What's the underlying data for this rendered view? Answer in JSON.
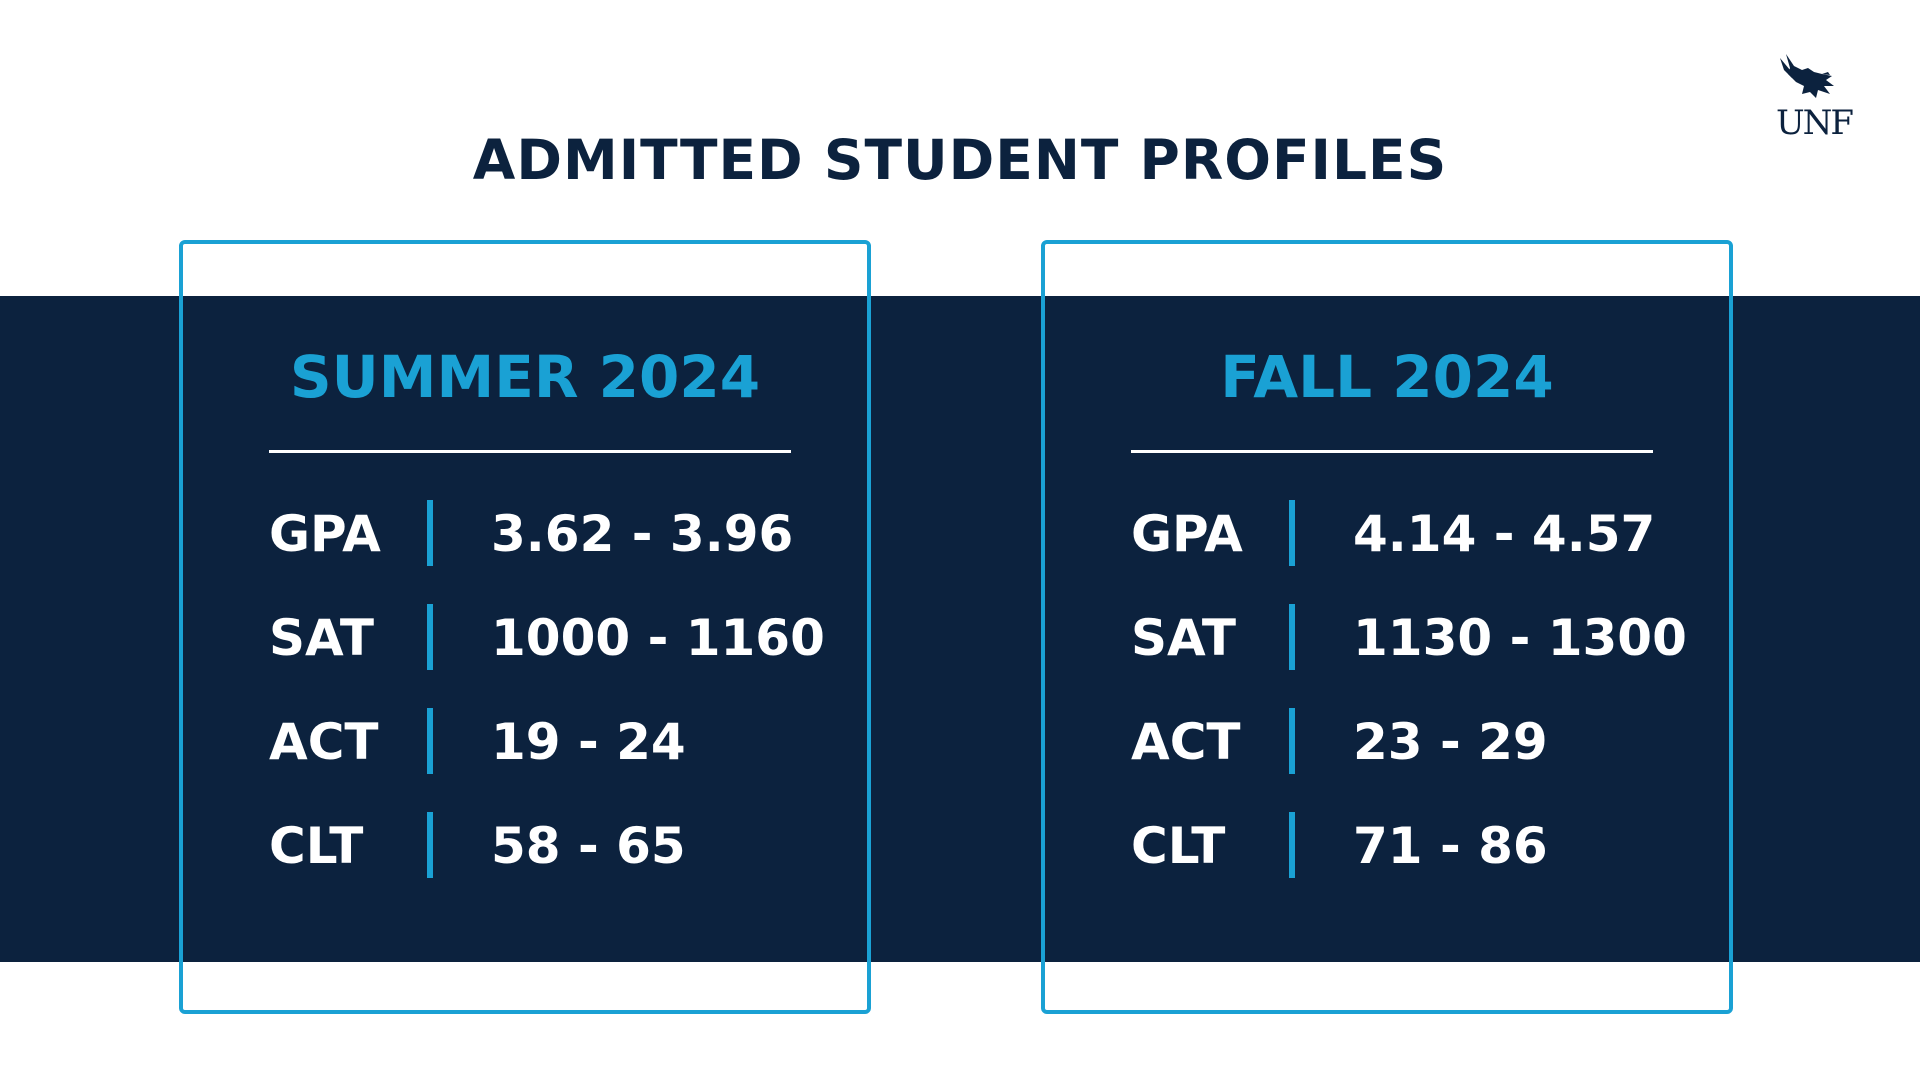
{
  "header": {
    "title": "ADMITTED STUDENT PROFILES",
    "logo_text": "UNF",
    "logo_icon": "osprey-icon"
  },
  "colors": {
    "navy": "#0c223e",
    "accent_blue": "#1aa1d4",
    "white": "#ffffff"
  },
  "cards": [
    {
      "title": "SUMMER 2024",
      "rows": [
        {
          "label": "GPA",
          "value": "3.62 - 3.96"
        },
        {
          "label": "SAT",
          "value": "1000 - 1160"
        },
        {
          "label": "ACT",
          "value": "19 - 24"
        },
        {
          "label": "CLT",
          "value": "58 - 65"
        }
      ]
    },
    {
      "title": "FALL 2024",
      "rows": [
        {
          "label": "GPA",
          "value": "4.14 - 4.57"
        },
        {
          "label": "SAT",
          "value": "1130 - 1300"
        },
        {
          "label": "ACT",
          "value": "23 - 29"
        },
        {
          "label": "CLT",
          "value": "71 - 86"
        }
      ]
    }
  ]
}
